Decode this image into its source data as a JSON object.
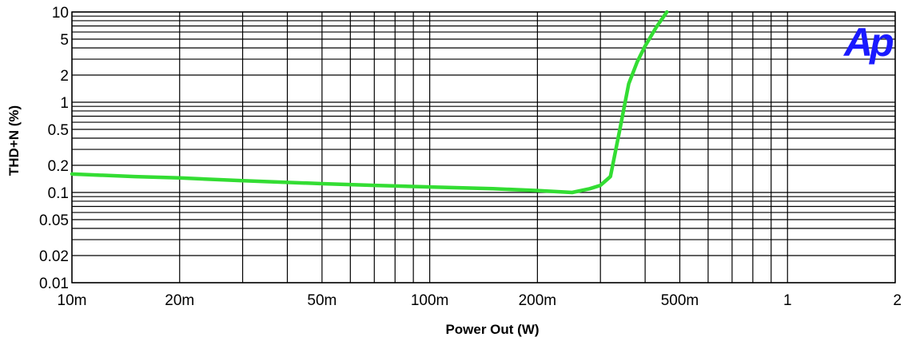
{
  "chart_data": {
    "type": "line",
    "title": "",
    "xlabel": "Power Out (W)",
    "ylabel": "THD+N (%)",
    "x_scale": "log",
    "y_scale": "log",
    "xlim": [
      0.01,
      2
    ],
    "ylim": [
      0.01,
      10
    ],
    "grid": true,
    "x_ticks": [
      {
        "value": 0.01,
        "label": "10m"
      },
      {
        "value": 0.02,
        "label": "20m"
      },
      {
        "value": 0.05,
        "label": "50m"
      },
      {
        "value": 0.1,
        "label": "100m"
      },
      {
        "value": 0.2,
        "label": "200m"
      },
      {
        "value": 0.5,
        "label": "500m"
      },
      {
        "value": 1,
        "label": "1"
      },
      {
        "value": 2,
        "label": "2"
      }
    ],
    "y_ticks": [
      {
        "value": 0.01,
        "label": "0.01"
      },
      {
        "value": 0.02,
        "label": "0.02"
      },
      {
        "value": 0.05,
        "label": "0.05"
      },
      {
        "value": 0.1,
        "label": "0.1"
      },
      {
        "value": 0.2,
        "label": "0.2"
      },
      {
        "value": 0.5,
        "label": "0.5"
      },
      {
        "value": 1,
        "label": "1"
      },
      {
        "value": 2,
        "label": "2"
      },
      {
        "value": 5,
        "label": "5"
      },
      {
        "value": 10,
        "label": "10"
      }
    ],
    "series": [
      {
        "color": "#33dd33",
        "x": [
          0.01,
          0.015,
          0.02,
          0.03,
          0.05,
          0.07,
          0.1,
          0.15,
          0.2,
          0.25,
          0.28,
          0.3,
          0.32,
          0.34,
          0.36,
          0.38,
          0.4,
          0.43,
          0.46
        ],
        "y": [
          0.16,
          0.15,
          0.145,
          0.135,
          0.125,
          0.12,
          0.115,
          0.11,
          0.105,
          0.1,
          0.11,
          0.12,
          0.15,
          0.5,
          1.6,
          2.8,
          4.2,
          6.8,
          10
        ]
      }
    ]
  },
  "logo": {
    "text": "Ap",
    "color": "#1a1aff"
  }
}
